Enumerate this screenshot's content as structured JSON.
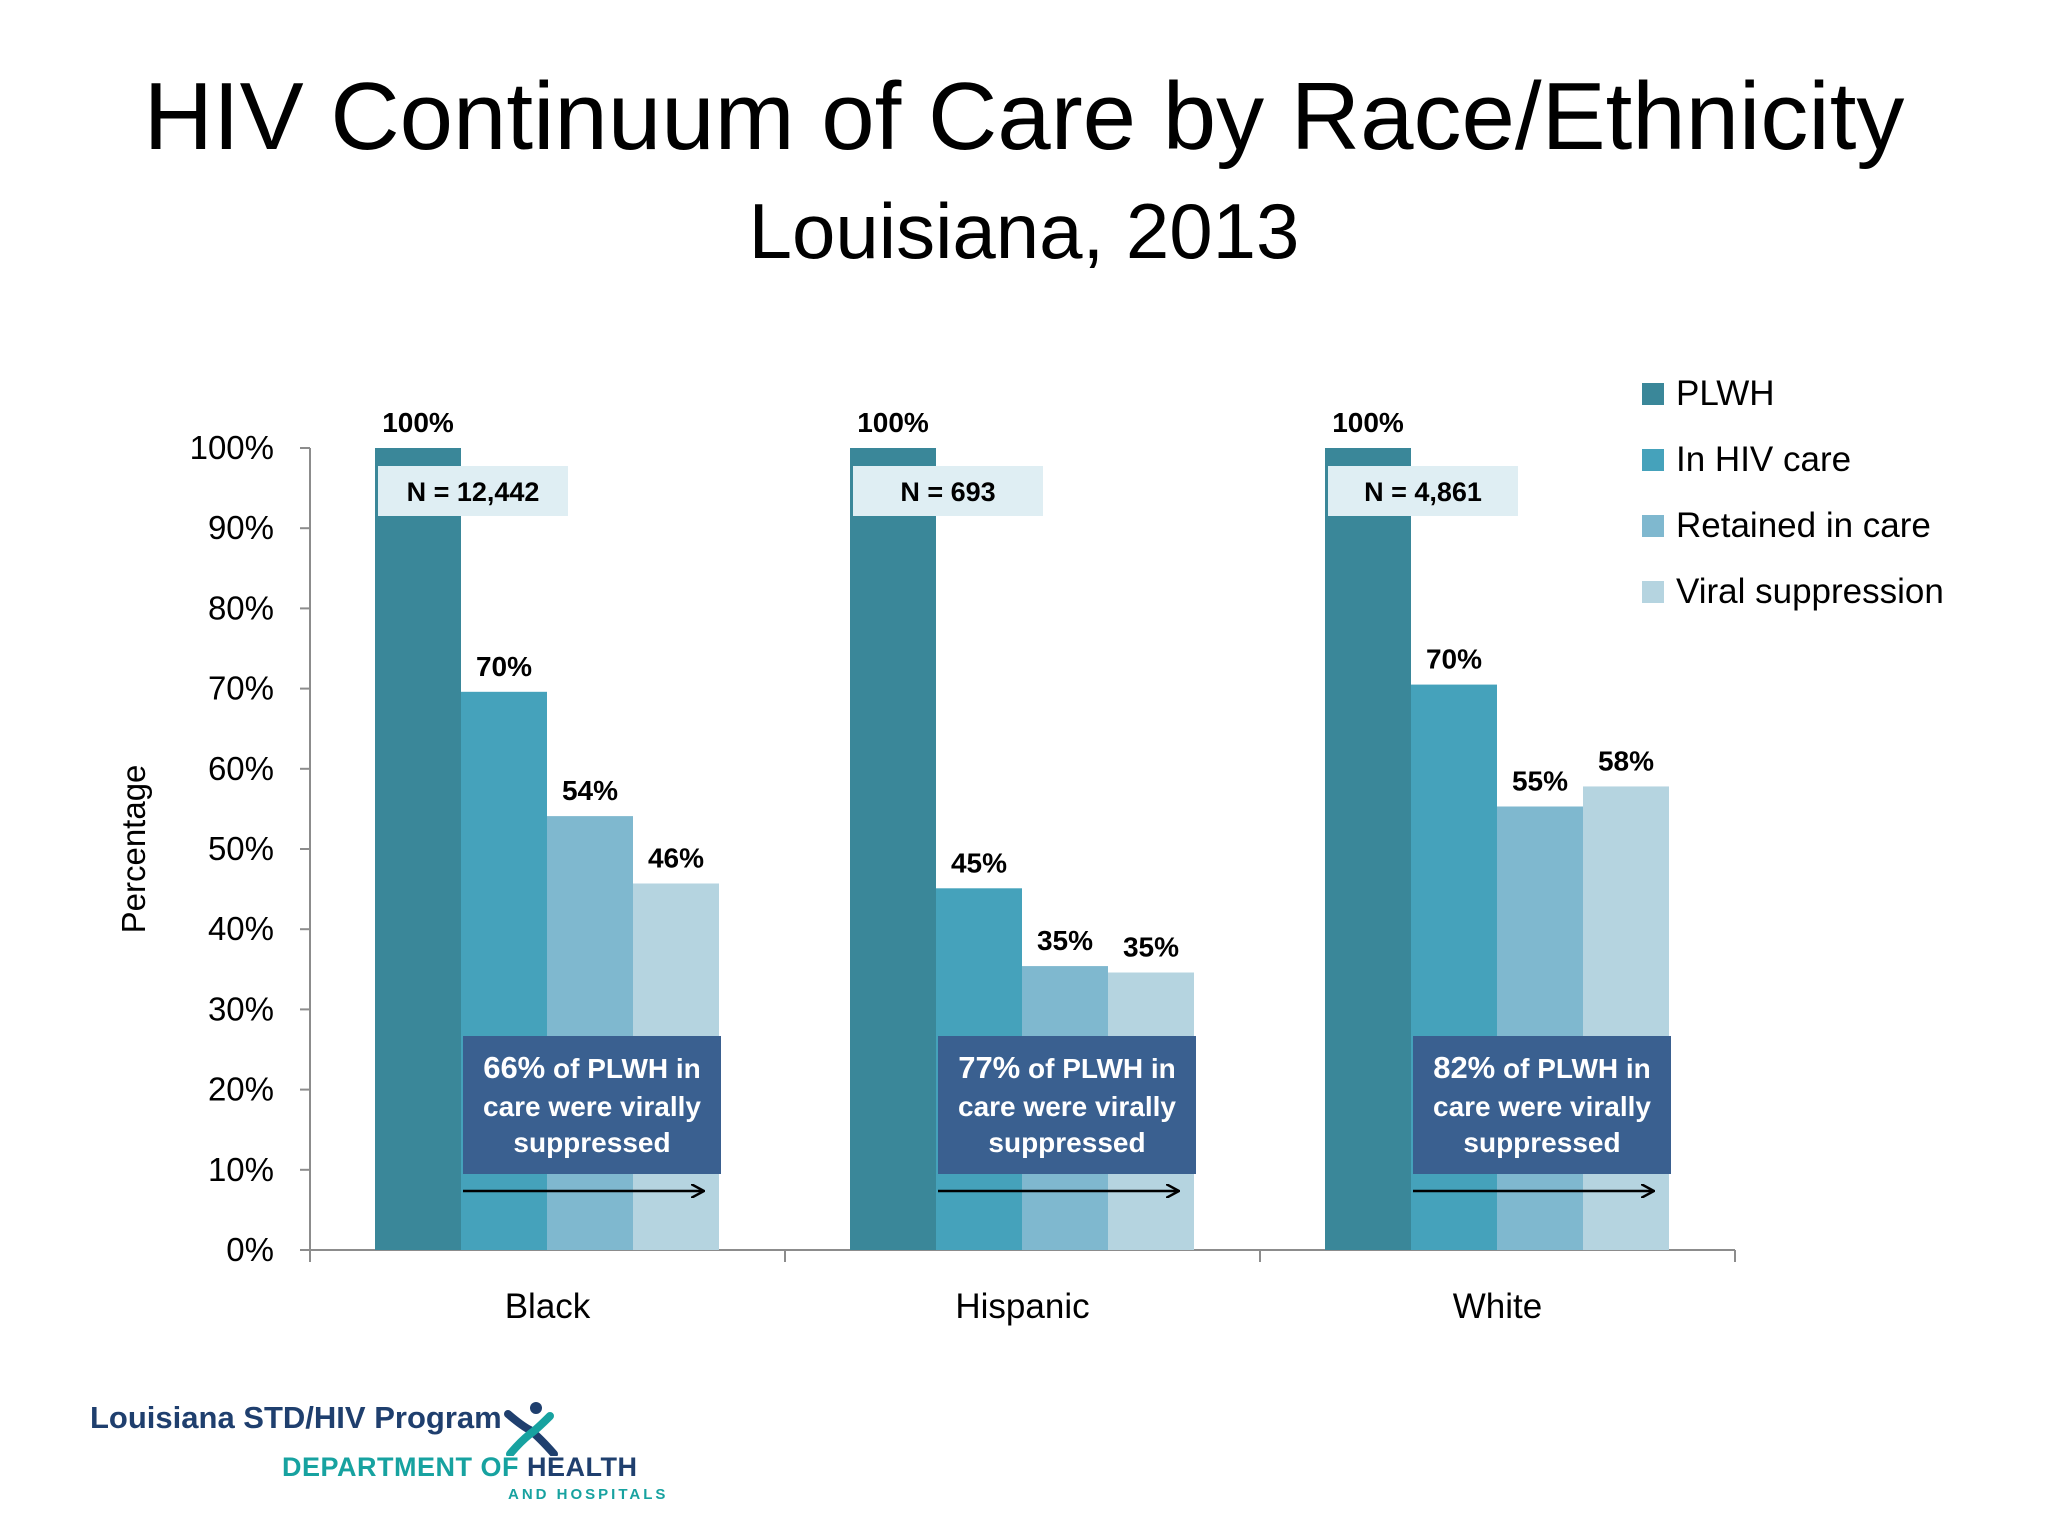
{
  "header": {
    "title": "HIV Continuum of Care by Race/Ethnicity",
    "subtitle": "Louisiana, 2013"
  },
  "chart_data": {
    "type": "bar",
    "categories": [
      "Black",
      "Hispanic",
      "White"
    ],
    "series": [
      {
        "name": "PLWH",
        "values": [
          100,
          100,
          100
        ],
        "labels": [
          "100%",
          "100%",
          "100%"
        ]
      },
      {
        "name": "In HIV care",
        "values": [
          69.6,
          45.1,
          70.5
        ],
        "labels": [
          "70%",
          "45%",
          "70%"
        ]
      },
      {
        "name": "Retained in care",
        "values": [
          54.1,
          35.4,
          55.3
        ],
        "labels": [
          "54%",
          "35%",
          "55%"
        ]
      },
      {
        "name": "Viral suppression",
        "values": [
          45.7,
          34.6,
          57.8
        ],
        "labels": [
          "46%",
          "35%",
          "58%"
        ]
      }
    ],
    "n_labels": [
      "N = 12,442",
      "N = 693",
      "N = 4,861"
    ],
    "annotations": [
      {
        "lead": "66%",
        "rest": " of PLWH in",
        "line2": "care were virally",
        "line3": "suppressed"
      },
      {
        "lead": "77%",
        "rest": " of PLWH in",
        "line2": "care were virally",
        "line3": "suppressed"
      },
      {
        "lead": "82%",
        "rest": " of PLWH in",
        "line2": "care were virally",
        "line3": "suppressed"
      }
    ],
    "ylabel": "Percentage",
    "ylim": [
      0,
      100
    ],
    "yticks": [
      "0%",
      "10%",
      "20%",
      "30%",
      "40%",
      "50%",
      "60%",
      "70%",
      "80%",
      "90%",
      "100%"
    ],
    "grid": false,
    "legend_position": "top-right",
    "colors": [
      "#3a8799",
      "#45a2bb",
      "#7fb8cf",
      "#b5d4e0"
    ],
    "annotation_color": "#3a6090",
    "n_label_bg": "#dfeef3"
  },
  "footer": {
    "program": "Louisiana STD/HIV Program",
    "dept_a": "DEPARTMENT OF ",
    "dept_b": "HEALTH",
    "dept_sub": "AND HOSPITALS"
  }
}
